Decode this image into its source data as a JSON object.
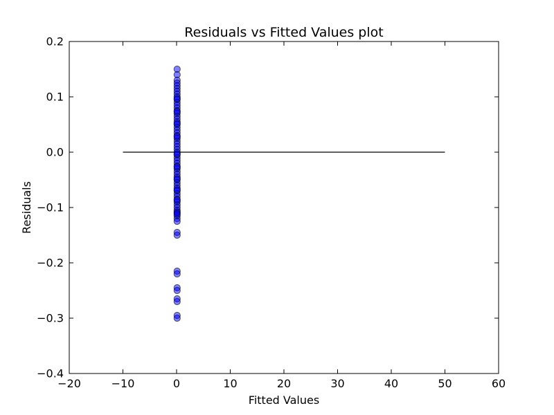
{
  "chart_data": {
    "type": "scatter",
    "title": "Residuals vs Fitted Values plot",
    "xlabel": "Fitted Values",
    "ylabel": "Residuals",
    "xlim": [
      -20,
      60
    ],
    "ylim": [
      -0.4,
      0.2
    ],
    "grid": false,
    "legend": "none",
    "x_ticks": [
      -20,
      -10,
      0,
      10,
      20,
      30,
      40,
      50,
      60
    ],
    "x_tick_labels": [
      "−20",
      "−10",
      "0",
      "10",
      "20",
      "30",
      "40",
      "50",
      "60"
    ],
    "y_ticks": [
      -0.4,
      -0.3,
      -0.2,
      -0.1,
      0.0,
      0.1,
      0.2
    ],
    "y_tick_labels": [
      "−0.4",
      "−0.3",
      "−0.2",
      "−0.1",
      "0.0",
      "0.1",
      "0.2"
    ],
    "marker_color": "#0000ff",
    "marker_edge_color": "#000000",
    "reference_line": {
      "x": [
        -10,
        50
      ],
      "y": 0.0,
      "color": "#000000"
    },
    "series": [
      {
        "x": [
          0.1,
          0.1,
          0.1,
          0.1,
          0.1,
          0.1,
          0.1,
          0.1,
          0.1,
          0.1,
          0.1,
          0.1,
          0.1,
          0.1,
          0.1,
          0.1,
          0.1,
          0.1,
          0.1,
          0.1,
          0.1,
          0.1,
          0.1,
          0.1,
          0.1,
          0.1,
          0.1,
          0.1,
          0.1,
          0.1,
          0.1,
          0.1,
          0.1,
          0.1,
          0.1,
          0.1,
          0.1,
          0.1,
          0.1,
          0.1,
          0.1,
          0.1,
          0.1,
          0.1,
          0.1,
          0.1,
          0.1,
          0.1,
          0.1,
          0.1,
          0.1,
          0.1,
          0.1,
          0.1,
          0.1,
          0.1,
          0.1,
          0.1,
          0.1,
          0.1,
          0.1,
          0.1,
          0.1,
          0.1,
          0.1,
          0.1,
          0.1,
          0.1,
          0.1,
          0.1,
          0.1,
          0.1,
          0.1,
          0.1,
          0.1
        ],
        "y": [
          0.15,
          0.14,
          0.13,
          0.125,
          0.12,
          0.115,
          0.11,
          0.105,
          0.1,
          0.095,
          0.09,
          0.085,
          0.08,
          0.075,
          0.07,
          0.065,
          0.06,
          0.055,
          0.05,
          0.045,
          0.04,
          0.035,
          0.03,
          0.025,
          0.02,
          0.015,
          0.01,
          0.005,
          0.0,
          -0.005,
          -0.01,
          -0.015,
          -0.02,
          -0.025,
          -0.03,
          -0.035,
          -0.04,
          -0.045,
          -0.05,
          -0.055,
          -0.06,
          -0.065,
          -0.07,
          -0.075,
          -0.08,
          -0.085,
          -0.09,
          -0.095,
          -0.1,
          -0.105,
          -0.11,
          -0.115,
          -0.12,
          -0.125,
          -0.145,
          -0.15,
          -0.215,
          -0.22,
          -0.245,
          -0.25,
          -0.265,
          -0.27,
          -0.295,
          -0.3,
          0.097,
          0.073,
          0.052,
          0.028,
          -0.003,
          -0.027,
          -0.048,
          -0.068,
          -0.087,
          -0.108,
          -0.112
        ]
      }
    ]
  }
}
